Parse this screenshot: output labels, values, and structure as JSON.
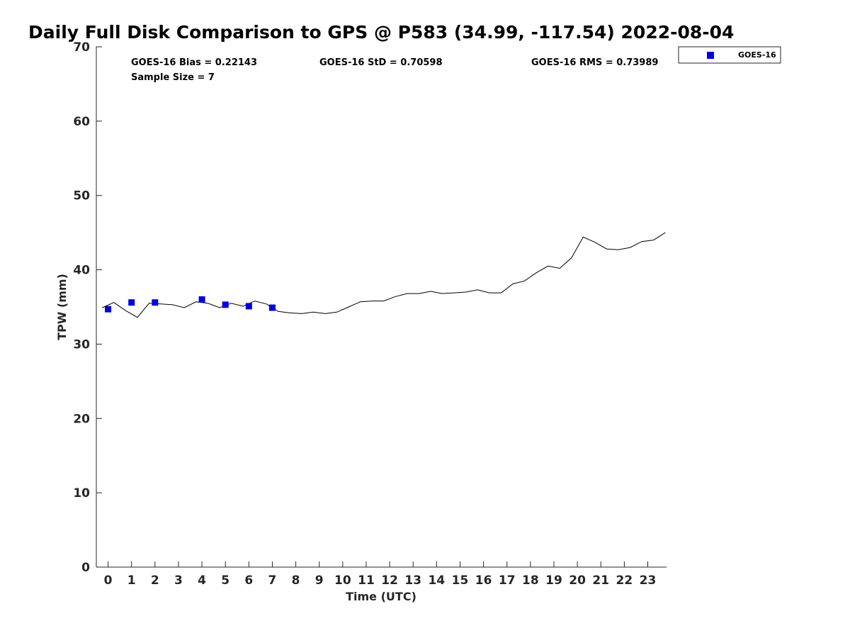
{
  "chart_data": {
    "type": "scatter",
    "title": "Daily Full Disk Comparison to GPS @ P583 (34.99, -117.54) 2022-08-04",
    "xlabel": "Time (UTC)",
    "ylabel": "TPW (mm)",
    "xlim": [
      -0.5,
      23.8
    ],
    "ylim": [
      0,
      70
    ],
    "xticks": [
      0,
      1,
      2,
      3,
      4,
      5,
      6,
      7,
      8,
      9,
      10,
      11,
      12,
      13,
      14,
      15,
      16,
      17,
      18,
      19,
      20,
      21,
      22,
      23
    ],
    "yticks": [
      0,
      10,
      20,
      30,
      40,
      50,
      60,
      70
    ],
    "grid": false,
    "legend_position": "top-right, outside plot",
    "stats": {
      "bias": "GOES-16 Bias = 0.22143",
      "std": "GOES-16 StD = 0.70598",
      "rms": "GOES-16 RMS = 0.73989",
      "sample": "Sample Size = 7"
    },
    "series": [
      {
        "name": "GOES-16",
        "kind": "scatter",
        "color": "#0000dd",
        "marker": "square",
        "x": [
          0,
          1,
          2,
          4,
          5,
          6,
          7
        ],
        "y": [
          34.7,
          35.6,
          35.6,
          36.0,
          35.3,
          35.1,
          34.9
        ]
      },
      {
        "kind": "line",
        "color": "#000000",
        "x": [
          -0.25,
          0.25,
          0.75,
          1.25,
          1.75,
          2.25,
          2.75,
          3.25,
          3.75,
          4.25,
          4.75,
          5.25,
          5.75,
          6.25,
          6.75,
          7.25,
          7.75,
          8.25,
          8.75,
          9.25,
          9.75,
          10.25,
          10.75,
          11.25,
          11.75,
          12.25,
          12.75,
          13.25,
          13.75,
          14.25,
          14.75,
          15.25,
          15.75,
          16.25,
          16.75,
          17.25,
          17.75,
          18.25,
          18.75,
          19.25,
          19.75,
          20.25,
          20.75,
          21.25,
          21.75,
          22.25,
          22.75,
          23.25,
          23.75
        ],
        "y": [
          34.9,
          35.6,
          34.5,
          33.6,
          35.5,
          35.4,
          35.3,
          34.9,
          35.7,
          35.5,
          34.9,
          35.5,
          35.1,
          35.8,
          35.4,
          34.4,
          34.2,
          34.1,
          34.3,
          34.1,
          34.3,
          35.0,
          35.7,
          35.8,
          35.8,
          36.4,
          36.8,
          36.8,
          37.1,
          36.8,
          36.9,
          37.0,
          37.3,
          36.9,
          36.9,
          38.1,
          38.5,
          39.6,
          40.5,
          40.2,
          41.6,
          44.4,
          43.7,
          42.8,
          42.7,
          43.0,
          43.8,
          44.0,
          45.0
        ]
      }
    ]
  }
}
